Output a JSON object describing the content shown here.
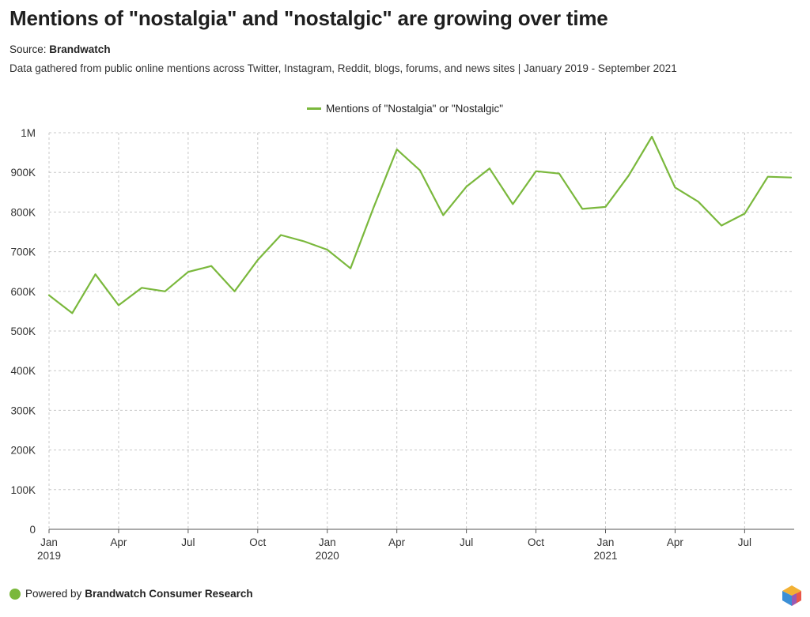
{
  "header": {
    "title": "Mentions of \"nostalgia\" and \"nostalgic\" are growing over time",
    "source_prefix": "Source:",
    "source_name": "Brandwatch",
    "subtitle": "Data gathered from public online mentions across Twitter, Instagram, Reddit, blogs, forums, and news sites | January 2019 - September 2021"
  },
  "footer": {
    "prefix": "Powered by",
    "brand": "Brandwatch Consumer Research",
    "logo_icon": "brandwatch-logo-icon"
  },
  "colors": {
    "series": "#7ab83c",
    "grid": "#c8c8c8",
    "axis": "#555555"
  },
  "chart_data": {
    "type": "line",
    "title": "Mentions of \"nostalgia\" and \"nostalgic\" are growing over time",
    "xlabel": "",
    "ylabel": "",
    "ylim": [
      0,
      1000000
    ],
    "yticks": [
      0,
      100000,
      200000,
      300000,
      400000,
      500000,
      600000,
      700000,
      800000,
      900000,
      1000000
    ],
    "ytick_labels": [
      "0",
      "100K",
      "200K",
      "300K",
      "400K",
      "500K",
      "600K",
      "700K",
      "800K",
      "900K",
      "1M"
    ],
    "xtick_labels": [
      {
        "month": "Jan",
        "year": "2019",
        "index": 0
      },
      {
        "month": "Apr",
        "year": "",
        "index": 3
      },
      {
        "month": "Jul",
        "year": "",
        "index": 6
      },
      {
        "month": "Oct",
        "year": "",
        "index": 9
      },
      {
        "month": "Jan",
        "year": "2020",
        "index": 12
      },
      {
        "month": "Apr",
        "year": "",
        "index": 15
      },
      {
        "month": "Jul",
        "year": "",
        "index": 18
      },
      {
        "month": "Oct",
        "year": "",
        "index": 21
      },
      {
        "month": "Jan",
        "year": "2021",
        "index": 24
      },
      {
        "month": "Apr",
        "year": "",
        "index": 27
      },
      {
        "month": "Jul",
        "year": "",
        "index": 30
      }
    ],
    "grid": true,
    "legend_position": "top-center",
    "x": [
      "2019-01",
      "2019-02",
      "2019-03",
      "2019-04",
      "2019-05",
      "2019-06",
      "2019-07",
      "2019-08",
      "2019-09",
      "2019-10",
      "2019-11",
      "2019-12",
      "2020-01",
      "2020-02",
      "2020-03",
      "2020-04",
      "2020-05",
      "2020-06",
      "2020-07",
      "2020-08",
      "2020-09",
      "2020-10",
      "2020-11",
      "2020-12",
      "2021-01",
      "2021-02",
      "2021-03",
      "2021-04",
      "2021-05",
      "2021-06",
      "2021-07",
      "2021-08",
      "2021-09"
    ],
    "series": [
      {
        "name": "Mentions of \"Nostalgia\" or \"Nostalgic\"",
        "color": "#7ab83c",
        "values": [
          590000,
          545000,
          643000,
          565000,
          609000,
          600000,
          649000,
          664000,
          600000,
          679000,
          742000,
          726000,
          705000,
          658000,
          812000,
          958000,
          905000,
          792000,
          864000,
          910000,
          820000,
          903000,
          897000,
          808000,
          813000,
          892000,
          990000,
          862000,
          826000,
          766000,
          796000,
          889000,
          887000
        ]
      }
    ]
  }
}
